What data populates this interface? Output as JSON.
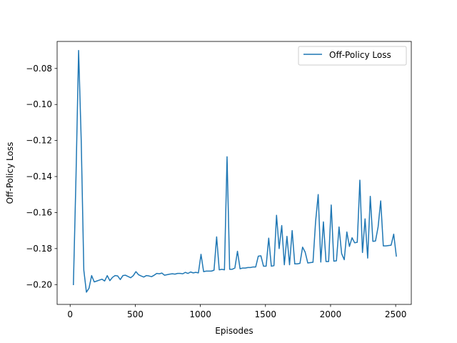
{
  "chart_data": {
    "type": "line",
    "title": "",
    "xlabel": "Episodes",
    "ylabel": "Off-Policy Loss",
    "xlim": [
      -100,
      2620
    ],
    "ylim": [
      -0.211,
      -0.065
    ],
    "xticks": [
      0,
      500,
      1000,
      1500,
      2000,
      2500
    ],
    "xtick_labels": [
      "0",
      "500",
      "1000",
      "1500",
      "2000",
      "2500"
    ],
    "yticks": [
      -0.2,
      -0.18,
      -0.16,
      -0.14,
      -0.12,
      -0.1,
      -0.08
    ],
    "ytick_labels": [
      "−0.20",
      "−0.18",
      "−0.16",
      "−0.14",
      "−0.12",
      "−0.10",
      "−0.08"
    ],
    "grid": false,
    "legend_position": "top-right",
    "color": "#1f77b4",
    "series": [
      {
        "name": "Off-Policy Loss",
        "x": [
          25,
          45,
          65,
          85,
          105,
          125,
          145,
          165,
          185,
          205,
          225,
          245,
          265,
          285,
          305,
          325,
          345,
          365,
          385,
          405,
          425,
          445,
          465,
          485,
          505,
          525,
          545,
          565,
          585,
          605,
          625,
          645,
          665,
          685,
          705,
          725,
          745,
          765,
          785,
          805,
          825,
          845,
          865,
          885,
          905,
          925,
          945,
          965,
          985,
          1005,
          1025,
          1045,
          1065,
          1085,
          1105,
          1125,
          1145,
          1165,
          1185,
          1205,
          1225,
          1245,
          1265,
          1285,
          1305,
          1325,
          1345,
          1365,
          1385,
          1405,
          1425,
          1445,
          1465,
          1485,
          1505,
          1525,
          1545,
          1565,
          1585,
          1605,
          1625,
          1645,
          1665,
          1685,
          1705,
          1725,
          1745,
          1765,
          1785,
          1805,
          1825,
          1845,
          1865,
          1885,
          1905,
          1925,
          1945,
          1965,
          1985,
          2005,
          2025,
          2045,
          2065,
          2085,
          2105,
          2125,
          2145,
          2165,
          2185,
          2205,
          2225,
          2245,
          2265,
          2285,
          2305,
          2325,
          2345,
          2365,
          2385,
          2405,
          2425,
          2445,
          2465,
          2485,
          2505
        ],
        "values": [
          -0.2,
          -0.14,
          -0.07,
          -0.12,
          -0.192,
          -0.2042,
          -0.202,
          -0.195,
          -0.1985,
          -0.198,
          -0.1975,
          -0.197,
          -0.198,
          -0.195,
          -0.1978,
          -0.196,
          -0.195,
          -0.1952,
          -0.1972,
          -0.195,
          -0.1948,
          -0.1955,
          -0.1962,
          -0.195,
          -0.1928,
          -0.1945,
          -0.1952,
          -0.1958,
          -0.195,
          -0.1952,
          -0.1956,
          -0.1948,
          -0.1938,
          -0.194,
          -0.1936,
          -0.1948,
          -0.1945,
          -0.1942,
          -0.194,
          -0.1942,
          -0.1938,
          -0.1938,
          -0.194,
          -0.1932,
          -0.1938,
          -0.193,
          -0.1935,
          -0.1932,
          -0.1935,
          -0.1832,
          -0.1928,
          -0.1925,
          -0.1925,
          -0.1925,
          -0.192,
          -0.1735,
          -0.1918,
          -0.1915,
          -0.1918,
          -0.129,
          -0.1915,
          -0.1915,
          -0.1908,
          -0.1815,
          -0.1912,
          -0.1908,
          -0.1908,
          -0.1905,
          -0.1905,
          -0.1902,
          -0.1902,
          -0.1842,
          -0.184,
          -0.1898,
          -0.1898,
          -0.1742,
          -0.1898,
          -0.1895,
          -0.1615,
          -0.18,
          -0.1672,
          -0.189,
          -0.1732,
          -0.189,
          -0.17,
          -0.1885,
          -0.1885,
          -0.1882,
          -0.1792,
          -0.182,
          -0.188,
          -0.1878,
          -0.1876,
          -0.165,
          -0.15,
          -0.1875,
          -0.1652,
          -0.1872,
          -0.1872,
          -0.1558,
          -0.187,
          -0.1868,
          -0.168,
          -0.1828,
          -0.1862,
          -0.1708,
          -0.1788,
          -0.174,
          -0.1768,
          -0.1765,
          -0.142,
          -0.1822,
          -0.1635,
          -0.1853,
          -0.151,
          -0.176,
          -0.1758,
          -0.168,
          -0.1535,
          -0.1785,
          -0.1785,
          -0.1783,
          -0.1781,
          -0.172,
          -0.1842
        ]
      }
    ]
  }
}
